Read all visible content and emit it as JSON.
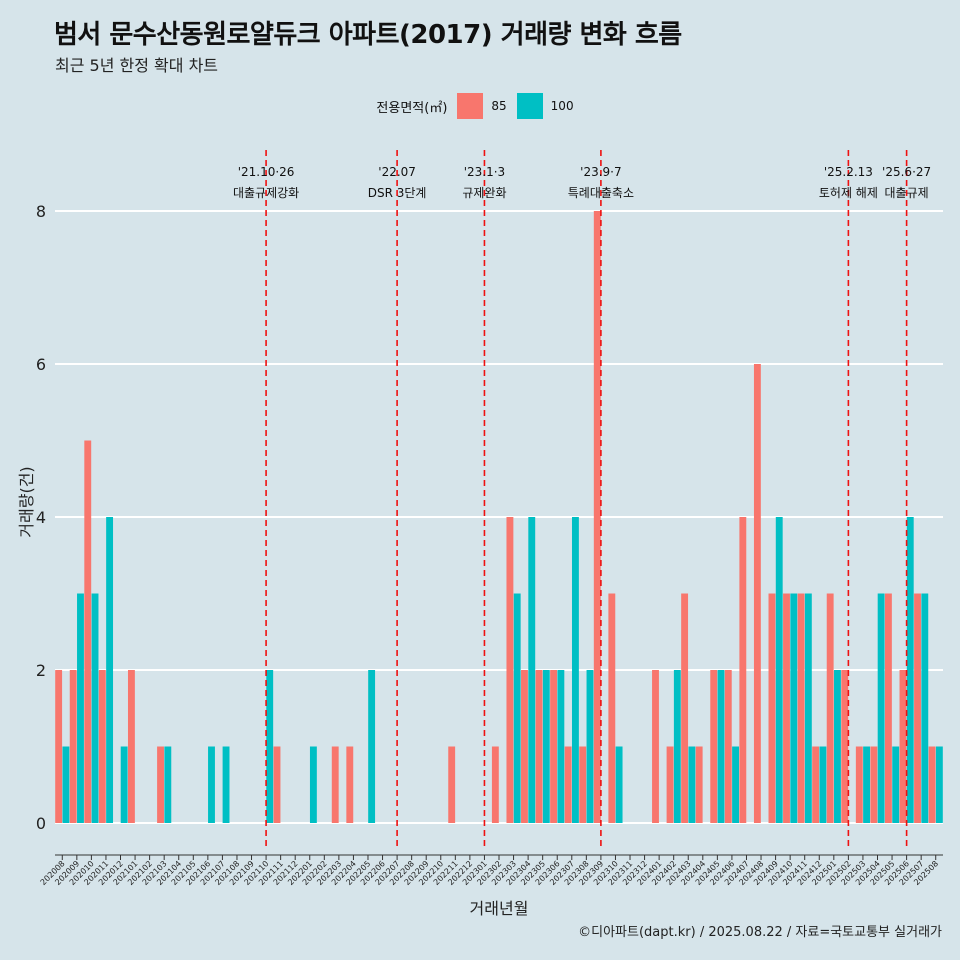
{
  "header": {
    "title": "범서 문수산동원로얄듀크 아파트(2017) 거래량 변화 흐름",
    "subtitle": "최근 5년 한정 확대 차트"
  },
  "legend": {
    "title": "전용면적(㎡)",
    "items": [
      {
        "label": "85",
        "color": "#f8766d"
      },
      {
        "label": "100",
        "color": "#00bfc4"
      }
    ]
  },
  "caption": "©디아파트(dapt.kr) / 2025.08.22 / 자료=국토교통부 실거래가",
  "chart_data": {
    "type": "bar",
    "title": "범서 문수산동원로얄듀크 아파트(2017) 거래량 변화 흐름",
    "subtitle": "최근 5년 한정 확대 차트",
    "xlabel": "거래년월",
    "ylabel": "거래량(건)",
    "ylim": [
      -0.3,
      8.3
    ],
    "y_ticks": [
      0,
      2,
      4,
      6,
      8
    ],
    "grid": "horizontal major lines",
    "legend_position": "top",
    "categories": [
      "202008",
      "202009",
      "202010",
      "202011",
      "202012",
      "202101",
      "202102",
      "202103",
      "202104",
      "202105",
      "202106",
      "202107",
      "202108",
      "202109",
      "202110",
      "202111",
      "202112",
      "202201",
      "202202",
      "202203",
      "202204",
      "202205",
      "202206",
      "202207",
      "202208",
      "202209",
      "202210",
      "202211",
      "202212",
      "202301",
      "202302",
      "202303",
      "202304",
      "202305",
      "202306",
      "202307",
      "202308",
      "202309",
      "202310",
      "202311",
      "202312",
      "202401",
      "202402",
      "202403",
      "202404",
      "202405",
      "202406",
      "202407",
      "202408",
      "202409",
      "202410",
      "202411",
      "202412",
      "202501",
      "202502",
      "202503",
      "202504",
      "202505",
      "202506",
      "202507",
      "202508"
    ],
    "series": [
      {
        "name": "85",
        "color": "#f8766d",
        "values": [
          2,
          2,
          5,
          2,
          0,
          2,
          0,
          1,
          0,
          0,
          0,
          0,
          0,
          0,
          0,
          1,
          0,
          0,
          0,
          1,
          1,
          0,
          0,
          0,
          0,
          0,
          0,
          1,
          0,
          0,
          1,
          4,
          2,
          2,
          2,
          1,
          1,
          8,
          3,
          0,
          0,
          2,
          1,
          3,
          1,
          2,
          2,
          4,
          6,
          3,
          3,
          3,
          1,
          3,
          2,
          1,
          1,
          3,
          2,
          3,
          1
        ]
      },
      {
        "name": "100",
        "color": "#00bfc4",
        "values": [
          1,
          3,
          3,
          4,
          1,
          0,
          0,
          1,
          0,
          0,
          1,
          1,
          0,
          0,
          2,
          0,
          0,
          1,
          0,
          0,
          0,
          2,
          0,
          0,
          0,
          0,
          0,
          0,
          0,
          0,
          0,
          3,
          4,
          2,
          2,
          4,
          2,
          0,
          1,
          0,
          0,
          0,
          2,
          1,
          0,
          2,
          1,
          0,
          0,
          4,
          3,
          3,
          1,
          2,
          0,
          1,
          3,
          1,
          4,
          3,
          1
        ]
      }
    ],
    "annotations": [
      {
        "category": "202110",
        "date_label": "'21.10·26",
        "event_label": "대출규제강화"
      },
      {
        "category": "202207",
        "date_label": "'22.07",
        "event_label": "DSR 3단계"
      },
      {
        "category": "202301",
        "date_label": "'23.1·3",
        "event_label": "규제완화"
      },
      {
        "category": "202309",
        "date_label": "'23.9·7",
        "event_label": "특례대출축소"
      },
      {
        "category": "202502",
        "date_label": "'25.2.13",
        "event_label": "토허제 해제"
      },
      {
        "category": "202506",
        "date_label": "'25.6·27",
        "event_label": "대출규제"
      }
    ]
  }
}
